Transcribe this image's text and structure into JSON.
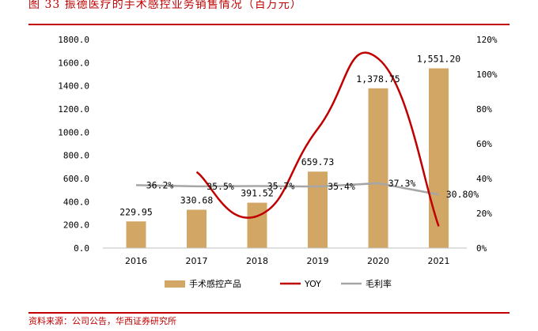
{
  "header": {
    "title": "图 33 振德医疗的手术感控业务销售情况（百万元）"
  },
  "footer": {
    "source": "资料来源：公司公告，华西证券研究所"
  },
  "colors": {
    "bar": "#d2a766",
    "yoy": "#c00000",
    "margin": "#a6a6a6",
    "accent": "#c00000"
  },
  "chart_data": {
    "type": "bar",
    "categories": [
      "2016",
      "2017",
      "2018",
      "2019",
      "2020",
      "2021"
    ],
    "series": [
      {
        "name": "手术感控产品",
        "kind": "bar",
        "axis": "left",
        "values": [
          229.95,
          330.68,
          391.52,
          659.73,
          1378.75,
          1551.2
        ],
        "labels": [
          "229.95",
          "330.68",
          "391.52",
          "659.73",
          "1,378.75",
          "1,551.20"
        ]
      },
      {
        "name": "YOY",
        "kind": "smooth-line",
        "axis": "right",
        "values": [
          null,
          43.8,
          18.4,
          68.5,
          109.0,
          12.5
        ]
      },
      {
        "name": "毛利率",
        "kind": "line",
        "axis": "right",
        "values": [
          36.2,
          35.5,
          35.7,
          35.4,
          37.3,
          30.8
        ],
        "labels": [
          "36.2%",
          "35.5%",
          "35.7%",
          "35.4%",
          "37.3%",
          "30.80%"
        ]
      }
    ],
    "y_left": {
      "min": 0,
      "max": 1800,
      "step": 200,
      "ticks": [
        "0.0",
        "200.0",
        "400.0",
        "600.0",
        "800.0",
        "1000.0",
        "1200.0",
        "1400.0",
        "1600.0",
        "1800.0"
      ]
    },
    "y_right": {
      "min": 0,
      "max": 120,
      "step": 20,
      "ticks": [
        "0%",
        "20%",
        "40%",
        "60%",
        "80%",
        "100%",
        "120%"
      ]
    },
    "legend": [
      "手术感控产品",
      "YOY",
      "毛利率"
    ],
    "legend_position": "bottom",
    "grid": false
  }
}
